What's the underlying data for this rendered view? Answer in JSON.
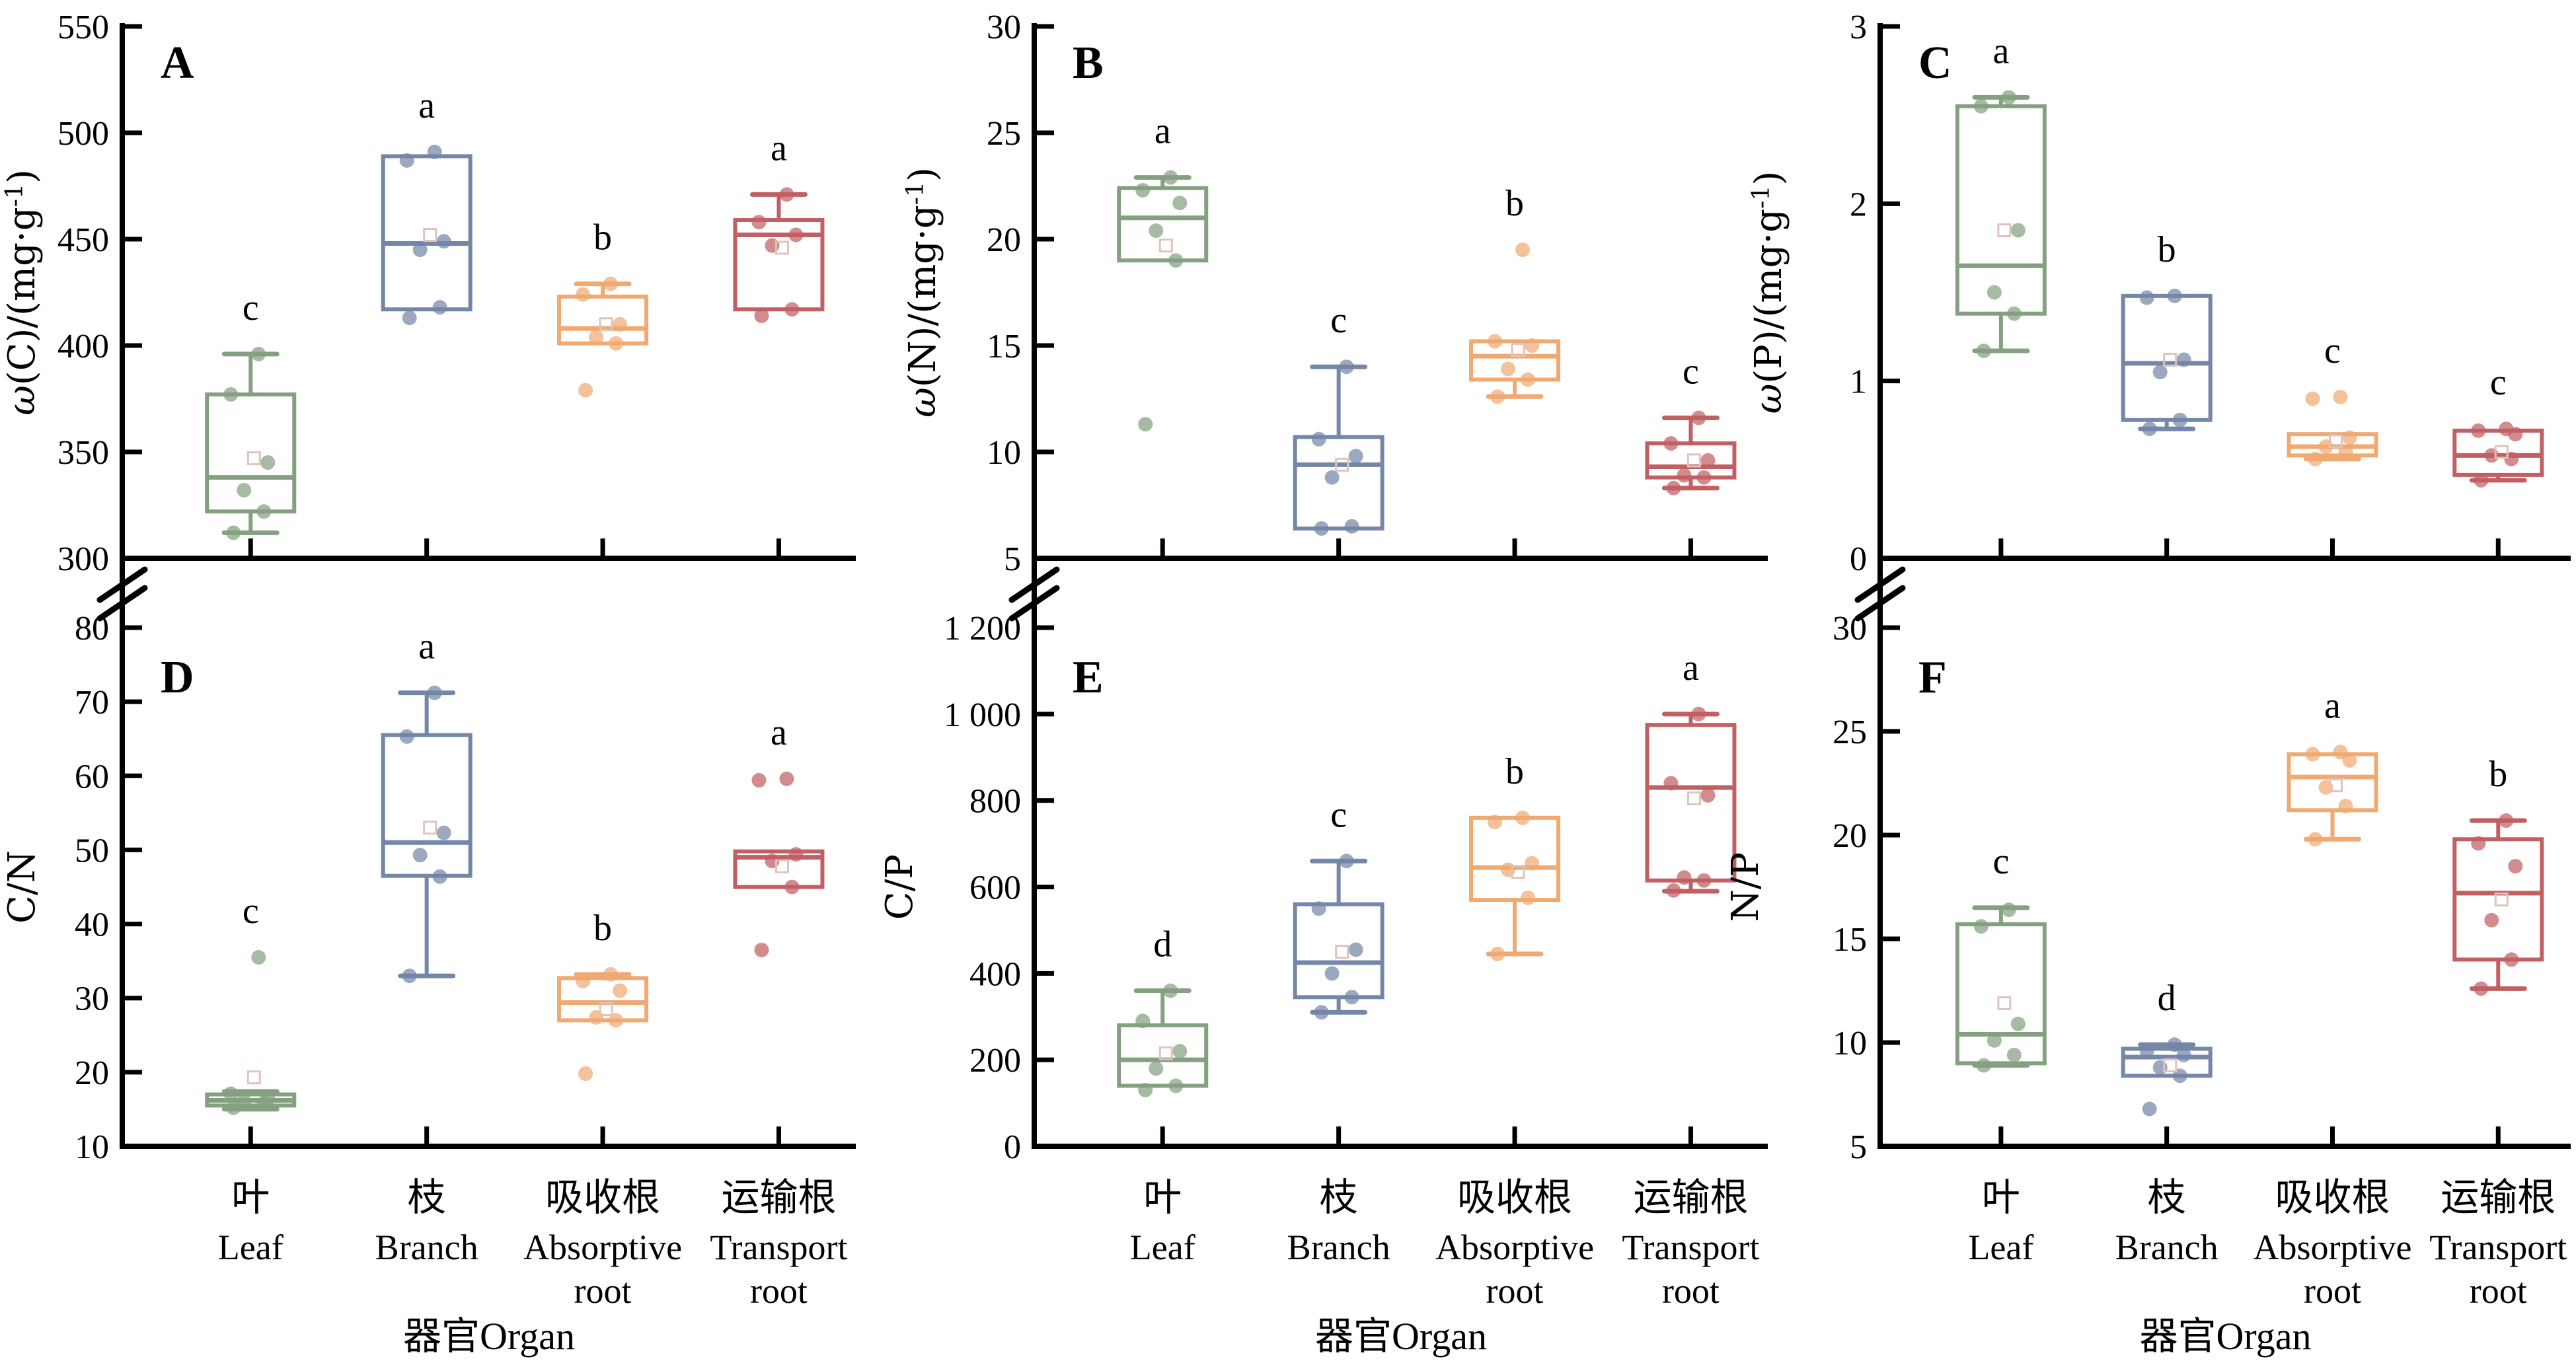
{
  "figure": {
    "x_axis_title": "器官Organ",
    "categories": [
      {
        "zh": "叶",
        "en": [
          "Leaf"
        ]
      },
      {
        "zh": "枝",
        "en": [
          "Branch"
        ]
      },
      {
        "zh": "吸收根",
        "en": [
          "Absorptive",
          "root"
        ]
      },
      {
        "zh": "运输根",
        "en": [
          "Transport",
          "root"
        ]
      }
    ],
    "group_colors": [
      "#85a081",
      "#7587a8",
      "#f0a971",
      "#c15f63"
    ],
    "mean_marker_color": "#dfc3bc",
    "axis_color": "#000000"
  },
  "chart_data": [
    {
      "panel": "A",
      "type": "box",
      "ylabel": "ω(C)/(mg·g⁻¹)",
      "ylim": [
        300,
        550
      ],
      "yticks": [
        300,
        350,
        400,
        450,
        500,
        550
      ],
      "ytick_labels": [
        "300",
        "350",
        "400",
        "450",
        "500",
        "550"
      ],
      "groups": [
        {
          "category": "Leaf",
          "letter": "c",
          "whisker_low": 312,
          "q1": 322,
          "median": 338,
          "q3": 377,
          "whisker_high": 396,
          "mean": 347,
          "points": [
            312,
            322,
            332,
            345,
            377,
            396
          ]
        },
        {
          "category": "Branch",
          "letter": "a",
          "whisker_low": 417,
          "q1": 417,
          "median": 448,
          "q3": 489,
          "whisker_high": 489,
          "mean": 452,
          "points": [
            413,
            418,
            445,
            449,
            487,
            491
          ]
        },
        {
          "category": "Absorptive root",
          "letter": "b",
          "whisker_low": 401,
          "q1": 401,
          "median": 408,
          "q3": 423,
          "whisker_high": 429,
          "mean": 410,
          "points": [
            379,
            401,
            404,
            410,
            424,
            429
          ]
        },
        {
          "category": "Transport root",
          "letter": "a",
          "whisker_low": 417,
          "q1": 417,
          "median": 452,
          "q3": 459,
          "whisker_high": 471,
          "mean": 446,
          "points": [
            414,
            417,
            447,
            452,
            458,
            471
          ]
        }
      ]
    },
    {
      "panel": "B",
      "type": "box",
      "ylabel": "ω(N)/(mg·g⁻¹)",
      "ylim": [
        5,
        30
      ],
      "yticks": [
        5,
        10,
        15,
        20,
        25,
        30
      ],
      "ytick_labels": [
        "5",
        "10",
        "15",
        "20",
        "25",
        "30"
      ],
      "groups": [
        {
          "category": "Leaf",
          "letter": "a",
          "whisker_low": 19.0,
          "q1": 19.0,
          "median": 21.0,
          "q3": 22.4,
          "whisker_high": 22.9,
          "mean": 19.7,
          "points": [
            11.3,
            19.0,
            20.4,
            21.7,
            22.3,
            22.9
          ]
        },
        {
          "category": "Branch",
          "letter": "c",
          "whisker_low": 6.4,
          "q1": 6.4,
          "median": 9.4,
          "q3": 10.7,
          "whisker_high": 14.0,
          "mean": 9.4,
          "points": [
            6.4,
            6.5,
            8.8,
            9.8,
            10.6,
            14.0
          ]
        },
        {
          "category": "Absorptive root",
          "letter": "b",
          "whisker_low": 12.6,
          "q1": 13.4,
          "median": 14.5,
          "q3": 15.2,
          "whisker_high": 15.2,
          "mean": 14.8,
          "points": [
            12.6,
            13.4,
            13.9,
            15.0,
            15.2,
            19.5
          ]
        },
        {
          "category": "Transport root",
          "letter": "c",
          "whisker_low": 8.3,
          "q1": 8.8,
          "median": 9.3,
          "q3": 10.4,
          "whisker_high": 11.6,
          "mean": 9.6,
          "points": [
            8.3,
            8.8,
            8.9,
            9.6,
            10.4,
            11.6
          ]
        }
      ]
    },
    {
      "panel": "C",
      "type": "box",
      "ylabel": "ω(P)/(mg·g⁻¹)",
      "ylim": [
        0,
        3
      ],
      "yticks": [
        0,
        1,
        2,
        3
      ],
      "ytick_labels": [
        "0",
        "1",
        "2",
        "3"
      ],
      "groups": [
        {
          "category": "Leaf",
          "letter": "a",
          "whisker_low": 1.17,
          "q1": 1.38,
          "median": 1.65,
          "q3": 2.55,
          "whisker_high": 2.6,
          "mean": 1.85,
          "points": [
            1.17,
            1.38,
            1.5,
            1.85,
            2.55,
            2.6
          ]
        },
        {
          "category": "Branch",
          "letter": "b",
          "whisker_low": 0.73,
          "q1": 0.78,
          "median": 1.1,
          "q3": 1.48,
          "whisker_high": 1.48,
          "mean": 1.12,
          "points": [
            0.73,
            0.78,
            1.05,
            1.12,
            1.47,
            1.48
          ]
        },
        {
          "category": "Absorptive root",
          "letter": "c",
          "whisker_low": 0.56,
          "q1": 0.58,
          "median": 0.63,
          "q3": 0.7,
          "whisker_high": 0.7,
          "mean": 0.66,
          "points": [
            0.56,
            0.6,
            0.63,
            0.68,
            0.9,
            0.91
          ]
        },
        {
          "category": "Transport root",
          "letter": "c",
          "whisker_low": 0.44,
          "q1": 0.47,
          "median": 0.58,
          "q3": 0.72,
          "whisker_high": 0.72,
          "mean": 0.6,
          "points": [
            0.44,
            0.56,
            0.58,
            0.7,
            0.72,
            0.73
          ]
        }
      ]
    },
    {
      "panel": "D",
      "type": "box",
      "ylabel": "C/N",
      "ylim": [
        10,
        80
      ],
      "yticks": [
        10,
        20,
        30,
        40,
        50,
        60,
        70,
        80
      ],
      "ytick_labels": [
        "10",
        "20",
        "30",
        "40",
        "50",
        "60",
        "70",
        "80"
      ],
      "groups": [
        {
          "category": "Leaf",
          "letter": "c",
          "whisker_low": 15.0,
          "q1": 15.5,
          "median": 16.2,
          "q3": 17.0,
          "whisker_high": 17.4,
          "mean": 19.3,
          "points": [
            15.2,
            15.8,
            16.1,
            16.4,
            17.1,
            35.5
          ]
        },
        {
          "category": "Branch",
          "letter": "a",
          "whisker_low": 33.0,
          "q1": 46.5,
          "median": 51.0,
          "q3": 65.5,
          "whisker_high": 71.2,
          "mean": 53.0,
          "points": [
            33.0,
            46.4,
            49.3,
            52.3,
            65.3,
            71.2
          ]
        },
        {
          "category": "Absorptive root",
          "letter": "b",
          "whisker_low": 27.0,
          "q1": 27.0,
          "median": 29.4,
          "q3": 32.7,
          "whisker_high": 33.2,
          "mean": 28.5,
          "points": [
            19.8,
            27.0,
            27.4,
            31.0,
            32.3,
            33.2
          ]
        },
        {
          "category": "Transport root",
          "letter": "a",
          "whisker_low": 45.0,
          "q1": 45.0,
          "median": 49.0,
          "q3": 49.8,
          "whisker_high": 49.8,
          "mean": 47.8,
          "points": [
            36.5,
            45.0,
            48.5,
            49.4,
            59.4,
            59.6
          ]
        }
      ]
    },
    {
      "panel": "E",
      "type": "box",
      "ylabel": "C/P",
      "ylim": [
        0,
        1200
      ],
      "yticks": [
        0,
        200,
        400,
        600,
        800,
        1000,
        1200
      ],
      "ytick_labels": [
        "0",
        "200",
        "400",
        "600",
        "800",
        "1 000",
        "1 200"
      ],
      "groups": [
        {
          "category": "Leaf",
          "letter": "d",
          "whisker_low": 140,
          "q1": 140,
          "median": 200,
          "q3": 280,
          "whisker_high": 360,
          "mean": 215,
          "points": [
            130,
            140,
            180,
            220,
            290,
            360
          ]
        },
        {
          "category": "Branch",
          "letter": "c",
          "whisker_low": 310,
          "q1": 345,
          "median": 425,
          "q3": 560,
          "whisker_high": 660,
          "mean": 450,
          "points": [
            310,
            345,
            400,
            455,
            550,
            660
          ]
        },
        {
          "category": "Absorptive root",
          "letter": "b",
          "whisker_low": 445,
          "q1": 570,
          "median": 645,
          "q3": 760,
          "whisker_high": 760,
          "mean": 635,
          "points": [
            445,
            575,
            640,
            655,
            750,
            760
          ]
        },
        {
          "category": "Transport root",
          "letter": "a",
          "whisker_low": 590,
          "q1": 615,
          "median": 830,
          "q3": 975,
          "whisker_high": 1000,
          "mean": 805,
          "points": [
            592,
            615,
            622,
            812,
            840,
            1000
          ]
        }
      ]
    },
    {
      "panel": "F",
      "type": "box",
      "ylabel": "N/P",
      "ylim": [
        5,
        30
      ],
      "yticks": [
        5,
        10,
        15,
        20,
        25,
        30
      ],
      "ytick_labels": [
        "5",
        "10",
        "15",
        "20",
        "25",
        "30"
      ],
      "groups": [
        {
          "category": "Leaf",
          "letter": "c",
          "whisker_low": 8.9,
          "q1": 9.0,
          "median": 10.4,
          "q3": 15.7,
          "whisker_high": 16.5,
          "mean": 11.9,
          "points": [
            8.9,
            9.4,
            10.1,
            10.9,
            15.6,
            16.4
          ]
        },
        {
          "category": "Branch",
          "letter": "d",
          "whisker_low": 8.4,
          "q1": 8.4,
          "median": 9.3,
          "q3": 9.7,
          "whisker_high": 9.9,
          "mean": 8.9,
          "points": [
            6.8,
            8.4,
            8.8,
            9.4,
            9.6,
            9.9
          ]
        },
        {
          "category": "Absorptive root",
          "letter": "a",
          "whisker_low": 19.8,
          "q1": 21.2,
          "median": 22.8,
          "q3": 23.9,
          "whisker_high": 23.9,
          "mean": 22.4,
          "points": [
            19.8,
            21.4,
            22.3,
            23.6,
            23.9,
            24.0
          ]
        },
        {
          "category": "Transport root",
          "letter": "b",
          "whisker_low": 12.6,
          "q1": 14.0,
          "median": 17.2,
          "q3": 19.8,
          "whisker_high": 20.7,
          "mean": 16.9,
          "points": [
            12.6,
            14.0,
            15.9,
            18.5,
            19.6,
            20.7
          ]
        }
      ]
    }
  ]
}
